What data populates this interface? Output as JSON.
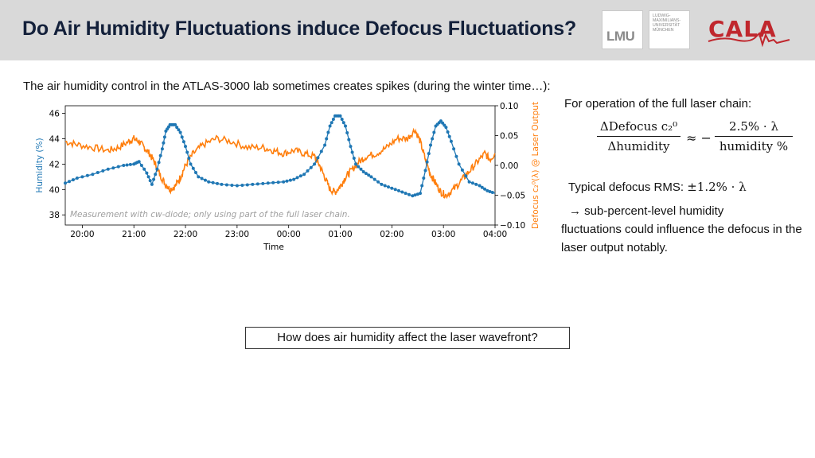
{
  "header": {
    "title": "Do Air Humidity Fluctuations induce Defocus Fluctuations?",
    "logo_lmu": "LMU",
    "logo_uni_lines": [
      "LUDWIG-",
      "MAXIMILIANS-",
      "UNIVERSITÄT",
      "MÜNCHEN"
    ],
    "logo_cala": "CALA"
  },
  "intro_text": "The air humidity control in the ATLAS-3000 lab sometimes creates spikes (during the winter time…):",
  "right_panel": {
    "full_chain": "For operation of the full laser chain:",
    "formula": {
      "lhs_num": "ΔDefocus c₂⁰",
      "lhs_den": "Δhumidity",
      "approx": "≈ −",
      "rhs_num": "2.5% · λ",
      "rhs_den": "humidity %"
    },
    "rms_label": "Typical defocus RMS: ",
    "rms_value": "±1.2% · λ",
    "consequence_line1": "→ sub-percent-level humidity",
    "consequence_rest": "fluctuations could influence the defocus in the laser output notably."
  },
  "question": "How does air humidity affect the laser wavefront?",
  "colors": {
    "humidity": "#1f77b4",
    "defocus": "#ff7f0e",
    "title": "#13203a",
    "cala_red": "#c0272d"
  },
  "chart_data": {
    "type": "line",
    "xlabel": "Time",
    "ylabel": "Humidity (%)",
    "y2label": "Defocus c₂⁰(λ) @ Laser Output",
    "annotation": "Measurement with cw-diode; only using part of the full laser chain.",
    "xlim": [
      19.67,
      28.0
    ],
    "ylim": [
      37.2,
      46.6
    ],
    "y2lim": [
      -0.1,
      0.1
    ],
    "x_ticks": [
      20,
      21,
      22,
      23,
      24,
      25,
      26,
      27,
      28
    ],
    "x_tick_labels": [
      "20:00",
      "21:00",
      "22:00",
      "23:00",
      "00:00",
      "01:00",
      "02:00",
      "03:00",
      "04:00"
    ],
    "y_ticks": [
      38,
      40,
      42,
      44,
      46
    ],
    "y_tick_labels": [
      "38",
      "40",
      "42",
      "44",
      "46"
    ],
    "y2_ticks": [
      -0.1,
      -0.05,
      0.0,
      0.05,
      0.1
    ],
    "y2_tick_labels": [
      "−0.10",
      "−0.05",
      "0.00",
      "0.05",
      "0.10"
    ],
    "series": [
      {
        "axis": "left",
        "marker": "dot",
        "x": [
          19.67,
          19.9,
          20.2,
          20.5,
          20.8,
          21.0,
          21.1,
          21.25,
          21.35,
          21.45,
          21.55,
          21.62,
          21.7,
          21.8,
          21.9,
          22.0,
          22.1,
          22.25,
          22.45,
          22.7,
          23.0,
          23.3,
          23.6,
          23.9,
          24.1,
          24.3,
          24.5,
          24.7,
          24.8,
          24.9,
          25.0,
          25.1,
          25.2,
          25.3,
          25.45,
          25.6,
          25.8,
          26.0,
          26.2,
          26.4,
          26.55,
          26.65,
          26.75,
          26.85,
          26.95,
          27.05,
          27.15,
          27.3,
          27.5,
          27.7,
          27.85,
          28.0
        ],
        "y": [
          40.5,
          40.9,
          41.2,
          41.6,
          41.9,
          42.0,
          42.2,
          41.3,
          40.4,
          41.6,
          43.2,
          44.6,
          45.1,
          45.1,
          44.5,
          43.4,
          42.0,
          41.0,
          40.6,
          40.4,
          40.3,
          40.4,
          40.5,
          40.6,
          40.8,
          41.2,
          42.0,
          43.5,
          45.0,
          45.8,
          45.8,
          45.0,
          43.4,
          42.0,
          41.4,
          41.0,
          40.4,
          40.1,
          39.8,
          39.5,
          39.7,
          41.5,
          43.5,
          45.0,
          45.4,
          44.9,
          43.8,
          42.0,
          40.6,
          40.3,
          39.9,
          39.7
        ]
      },
      {
        "axis": "right",
        "marker": "none",
        "x": [
          19.67,
          19.9,
          20.2,
          20.5,
          20.7,
          20.9,
          21.0,
          21.1,
          21.2,
          21.3,
          21.4,
          21.5,
          21.6,
          21.7,
          21.8,
          21.9,
          22.0,
          22.15,
          22.35,
          22.6,
          22.9,
          23.2,
          23.5,
          23.7,
          23.9,
          24.1,
          24.3,
          24.5,
          24.6,
          24.7,
          24.8,
          24.9,
          25.0,
          25.1,
          25.2,
          25.35,
          25.5,
          25.7,
          25.9,
          26.1,
          26.3,
          26.45,
          26.55,
          26.65,
          26.75,
          26.85,
          26.95,
          27.05,
          27.2,
          27.35,
          27.5,
          27.65,
          27.8,
          27.9,
          28.0
        ],
        "y": [
          0.04,
          0.035,
          0.03,
          0.025,
          0.03,
          0.04,
          0.045,
          0.04,
          0.03,
          0.02,
          0.005,
          -0.015,
          -0.03,
          -0.04,
          -0.035,
          -0.02,
          0.0,
          0.02,
          0.035,
          0.045,
          0.04,
          0.03,
          0.03,
          0.025,
          0.02,
          0.025,
          0.02,
          0.015,
          0.0,
          -0.02,
          -0.04,
          -0.045,
          -0.035,
          -0.02,
          -0.01,
          0.005,
          0.015,
          0.02,
          0.03,
          0.045,
          0.045,
          0.06,
          0.04,
          0.01,
          -0.015,
          -0.03,
          -0.045,
          -0.05,
          -0.04,
          -0.025,
          -0.01,
          0.005,
          0.02,
          0.01,
          0.02
        ]
      }
    ]
  }
}
